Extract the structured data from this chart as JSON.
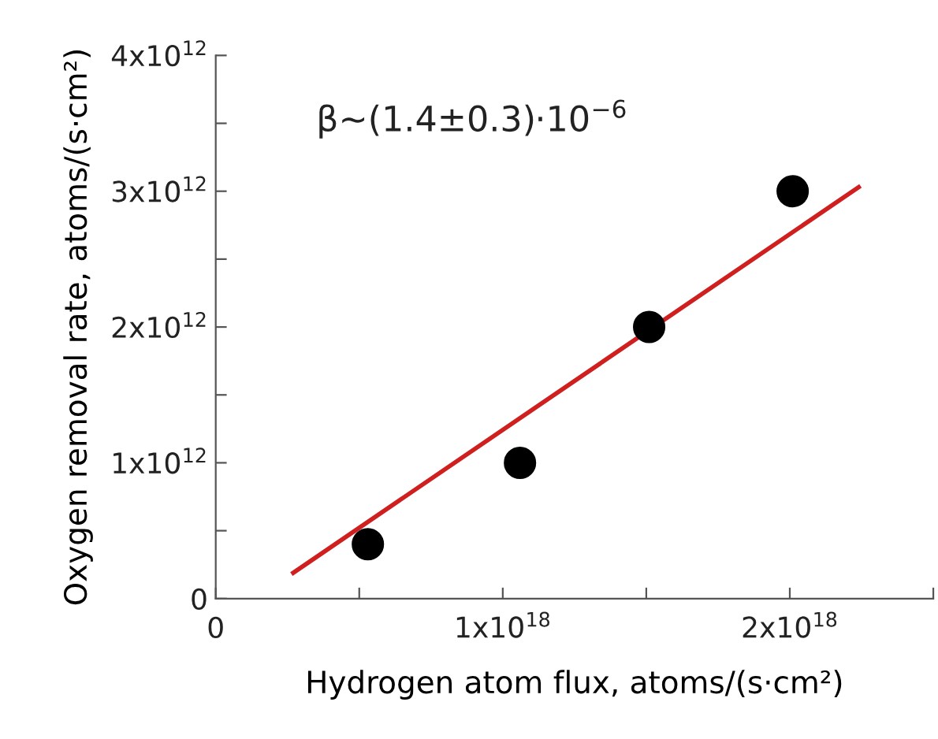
{
  "chart_data": {
    "type": "scatter",
    "xlabel": "Hydrogen atom flux, atoms/(s·cm²)",
    "ylabel": "Oxygen removal rate, atoms/(s·cm²)",
    "annotations": [
      "β~(1.4±0.3)·10$^{−6}$"
    ],
    "series": [
      {
        "color": "#000000",
        "marker": "circle",
        "x": [
          5.3e+17,
          1.06e+18,
          1.51e+18,
          2.01e+18
        ],
        "values": [
          400000000000.0,
          1000000000000.0,
          2000000000000.0,
          3000000000000.0
        ]
      },
      {
        "type": "line",
        "color": "#d01f1f",
        "marker": "none",
        "line_style": "solid",
        "x": [
          2.7e+17,
          2.24e+18
        ],
        "values": [
          190000000000.0,
          3030000000000.0
        ]
      }
    ],
    "xlim": [
      0,
      2.5e+18
    ],
    "xticks": [
      0,
      {
        "value": 5e+17,
        "label": null
      },
      {
        "value": 1e+18,
        "label": "1x10$^{18}$"
      },
      {
        "value": 1.5e+18,
        "label": null
      },
      {
        "value": 2e+18,
        "label": "2x10$^{18}$"
      },
      {
        "value": 2.5e+18,
        "label": null
      }
    ],
    "ylim": [
      0,
      4000000000000.0
    ],
    "yticks": [
      0,
      {
        "value": 500000000000.0,
        "label": null
      },
      {
        "value": 1000000000000.0,
        "label": "1x10$^{12}$"
      },
      {
        "value": 1500000000000.0,
        "label": null
      },
      {
        "value": 2000000000000.0,
        "label": "2x10$^{12}$"
      },
      {
        "value": 2500000000000.0,
        "label": null
      },
      {
        "value": 3000000000000.0,
        "label": "3x10$^{12}$"
      },
      {
        "value": 3500000000000.0,
        "label": null
      },
      {
        "value": 4000000000000.0,
        "label": "4x10$^{12}$"
      }
    ],
    "grid": false,
    "legend": false
  }
}
